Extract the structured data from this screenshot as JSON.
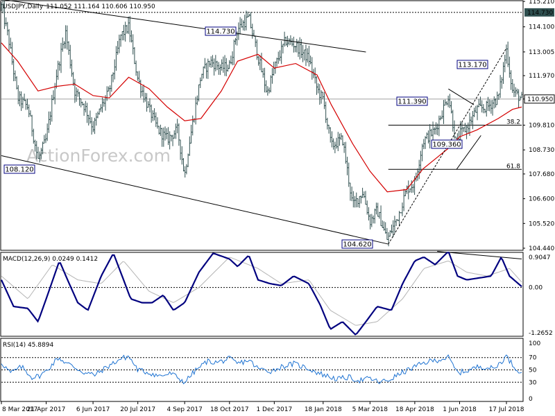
{
  "header": {
    "symbol": "USDJPY,Daily",
    "ohlc": "111.052 111.164 110.606 110.950"
  },
  "watermark": "ActionForex.com",
  "price_panel": {
    "y_ticks": [
      "115.210",
      "114.100",
      "113.005",
      "111.970",
      "110.950",
      "109.810",
      "108.730",
      "107.680",
      "106.600",
      "105.520",
      "104.440"
    ],
    "current_price": "110.950",
    "marked_level": "114.730",
    "annotations": [
      "114.730",
      "113.170",
      "111.390",
      "109.360",
      "108.120",
      "104.620"
    ],
    "fib_levels": [
      "38.2",
      "61.8"
    ]
  },
  "macd_panel": {
    "label": "MACD(12,26,9) 0.0249 0.1412",
    "y_ticks": [
      "0.9047",
      "0.00",
      "-1.2652"
    ]
  },
  "rsi_panel": {
    "label": "RSI(14) 45.8894",
    "y_ticks": [
      "100",
      "70",
      "50",
      "30",
      "0"
    ]
  },
  "x_ticks": [
    "8 Mar 2017",
    "21 Apr 2017",
    "6 Jun 2017",
    "20 Jul 2017",
    "4 Sep 2017",
    "18 Oct 2017",
    "1 Dec 2017",
    "18 Jan 2018",
    "5 Mar 2018",
    "18 Apr 2018",
    "1 Jun 2018",
    "17 Jul 2018"
  ],
  "colors": {
    "price_bars": "#2f4f4f",
    "moving_average": "#d40000",
    "macd_line": "#00007f",
    "macd_signal": "#b4b4b4",
    "rsi_line": "#1e73d2"
  },
  "chart_data": [
    {
      "type": "ohlc",
      "instrument": "USDJPY",
      "timeframe": "Daily",
      "x_range": [
        "2017-03-08",
        "2018-08-01"
      ],
      "ylim": [
        104.44,
        115.21
      ],
      "current": 110.95,
      "last_bar": {
        "open": 111.052,
        "high": 111.164,
        "low": 110.606,
        "close": 110.95
      },
      "close_series": {
        "x": [
          "2017-03-08",
          "2017-03-15",
          "2017-03-24",
          "2017-04-03",
          "2017-04-13",
          "2017-04-21",
          "2017-05-01",
          "2017-05-10",
          "2017-05-19",
          "2017-05-29",
          "2017-06-06",
          "2017-06-14",
          "2017-06-22",
          "2017-07-03",
          "2017-07-11",
          "2017-07-20",
          "2017-07-31",
          "2017-08-09",
          "2017-08-18",
          "2017-08-28",
          "2017-09-04",
          "2017-09-08",
          "2017-09-20",
          "2017-09-29",
          "2017-10-10",
          "2017-10-18",
          "2017-10-26",
          "2017-11-06",
          "2017-11-15",
          "2017-11-24",
          "2017-12-01",
          "2017-12-12",
          "2017-12-22",
          "2018-01-04",
          "2018-01-12",
          "2018-01-18",
          "2018-01-26",
          "2018-02-06",
          "2018-02-16",
          "2018-02-26",
          "2018-03-05",
          "2018-03-12",
          "2018-03-22",
          "2018-04-02",
          "2018-04-10",
          "2018-04-18",
          "2018-04-26",
          "2018-05-08",
          "2018-05-21",
          "2018-05-29",
          "2018-06-01",
          "2018-06-08",
          "2018-06-18",
          "2018-06-28",
          "2018-07-09",
          "2018-07-17",
          "2018-07-23",
          "2018-08-01"
        ],
        "close": [
          115.0,
          113.6,
          111.0,
          110.6,
          108.3,
          109.2,
          112.0,
          113.9,
          111.3,
          110.6,
          109.7,
          110.6,
          111.3,
          113.7,
          114.1,
          111.8,
          110.5,
          109.6,
          109.2,
          109.6,
          107.6,
          108.9,
          112.0,
          112.6,
          112.3,
          112.4,
          114.0,
          114.5,
          112.8,
          111.2,
          112.3,
          113.5,
          113.3,
          112.7,
          111.4,
          110.9,
          108.9,
          109.2,
          106.3,
          106.9,
          105.6,
          106.1,
          104.8,
          105.9,
          107.0,
          107.3,
          109.1,
          109.6,
          111.1,
          108.9,
          109.4,
          109.7,
          110.5,
          110.6,
          111.0,
          113.1,
          111.3,
          110.95
        ]
      },
      "moving_average": {
        "x": [
          "2017-03-08",
          "2017-03-24",
          "2017-04-13",
          "2017-05-01",
          "2017-05-19",
          "2017-06-06",
          "2017-06-22",
          "2017-07-11",
          "2017-07-31",
          "2017-08-18",
          "2017-09-04",
          "2017-09-20",
          "2017-10-10",
          "2017-10-26",
          "2017-11-15",
          "2017-12-01",
          "2017-12-22",
          "2018-01-12",
          "2018-01-26",
          "2018-02-16",
          "2018-03-05",
          "2018-03-22",
          "2018-04-10",
          "2018-04-26",
          "2018-05-21",
          "2018-06-01",
          "2018-06-18",
          "2018-07-09",
          "2018-07-23",
          "2018-08-01"
        ],
        "value": [
          113.4,
          112.6,
          111.3,
          111.5,
          111.6,
          111.1,
          111.0,
          111.9,
          111.4,
          110.6,
          110.0,
          110.1,
          111.3,
          112.6,
          112.9,
          112.3,
          112.5,
          112.0,
          110.7,
          109.0,
          107.8,
          106.9,
          107.0,
          107.9,
          108.8,
          109.3,
          109.6,
          110.1,
          110.5,
          110.6
        ]
      },
      "annotations": [
        {
          "label": "114.730",
          "x": "2017-10-18",
          "y": 114.73
        },
        {
          "label": "113.170",
          "x": "2018-07-17",
          "y": 113.17
        },
        {
          "label": "111.390",
          "x": "2018-05-21",
          "y": 111.39
        },
        {
          "label": "109.360",
          "x": "2018-05-29",
          "y": 109.36
        },
        {
          "label": "108.120",
          "x": "2017-04-13",
          "y": 108.12
        },
        {
          "label": "104.620",
          "x": "2018-03-23",
          "y": 104.62
        }
      ],
      "fib_levels": [
        {
          "label": "38.2",
          "y": 109.81
        },
        {
          "label": "61.8",
          "y": 107.88
        }
      ],
      "horizontal_line": 114.73,
      "trendlines": [
        {
          "style": "solid",
          "from": {
            "x": "2017-03-08",
            "y": 115.3
          },
          "to": {
            "x": "2018-03-01",
            "y": 113.0
          }
        },
        {
          "style": "solid",
          "from": {
            "x": "2017-03-08",
            "y": 108.48
          },
          "to": {
            "x": "2018-03-23",
            "y": 104.62
          }
        },
        {
          "style": "dashed",
          "from": {
            "x": "2018-03-23",
            "y": 104.62
          },
          "to": {
            "x": "2018-07-17",
            "y": 113.17
          }
        },
        {
          "style": "solid",
          "from": {
            "x": "2018-05-21",
            "y": 111.39
          },
          "to": {
            "x": "2018-06-15",
            "y": 110.7
          }
        },
        {
          "style": "solid",
          "from": {
            "x": "2018-05-29",
            "y": 107.88
          },
          "to": {
            "x": "2018-06-22",
            "y": 109.36
          }
        }
      ]
    },
    {
      "type": "line",
      "indicator": "MACD(12,26,9)",
      "ylim": [
        -1.2652,
        0.9047
      ],
      "series": [
        {
          "style": "thick",
          "x": [
            "2017-03-08",
            "2017-03-20",
            "2017-04-03",
            "2017-04-13",
            "2017-04-21",
            "2017-05-04",
            "2017-05-12",
            "2017-05-22",
            "2017-06-01",
            "2017-06-14",
            "2017-06-26",
            "2017-07-06",
            "2017-07-13",
            "2017-07-24",
            "2017-08-03",
            "2017-08-14",
            "2017-08-24",
            "2017-09-04",
            "2017-09-18",
            "2017-10-02",
            "2017-10-18",
            "2017-10-26",
            "2017-11-06",
            "2017-11-15",
            "2017-11-27",
            "2017-12-08",
            "2017-12-20",
            "2018-01-04",
            "2018-01-15",
            "2018-01-25",
            "2018-02-06",
            "2018-02-19",
            "2018-03-01",
            "2018-03-12",
            "2018-03-26",
            "2018-04-06",
            "2018-04-18",
            "2018-04-27",
            "2018-05-08",
            "2018-05-21",
            "2018-05-30",
            "2018-06-08",
            "2018-06-20",
            "2018-07-02",
            "2018-07-12",
            "2018-07-20",
            "2018-08-01"
          ],
          "values": [
            0.2,
            -0.5,
            -0.55,
            -0.9,
            -0.3,
            0.7,
            0.2,
            -0.4,
            -0.6,
            0.3,
            0.9,
            0.2,
            -0.3,
            -0.4,
            -0.4,
            -0.2,
            -0.6,
            -0.4,
            0.4,
            0.9,
            0.75,
            0.55,
            0.85,
            0.2,
            0.1,
            0.05,
            0.3,
            0.1,
            -0.45,
            -1.1,
            -0.9,
            -1.25,
            -0.9,
            -0.5,
            -0.6,
            0.1,
            0.7,
            0.8,
            0.6,
            0.95,
            0.3,
            0.2,
            0.25,
            0.3,
            0.8,
            0.3,
            0.0249
          ]
        },
        {
          "style": "thin",
          "x": [
            "2017-03-08",
            "2017-04-03",
            "2017-04-27",
            "2017-05-22",
            "2017-06-14",
            "2017-07-06",
            "2017-07-31",
            "2017-08-24",
            "2017-09-18",
            "2017-10-18",
            "2017-11-15",
            "2017-12-08",
            "2018-01-04",
            "2018-01-25",
            "2018-02-19",
            "2018-03-12",
            "2018-04-06",
            "2018-04-27",
            "2018-05-21",
            "2018-06-08",
            "2018-06-28",
            "2018-07-20",
            "2018-08-01"
          ],
          "values": [
            0.3,
            -0.3,
            0.6,
            0.2,
            0.1,
            0.7,
            -0.1,
            -0.4,
            0.0,
            0.8,
            0.5,
            0.1,
            0.2,
            -0.6,
            -1.0,
            -0.9,
            -0.3,
            0.5,
            0.7,
            0.4,
            0.3,
            0.5,
            0.1412
          ]
        }
      ],
      "trendline": {
        "from": {
          "x": "2018-05-10",
          "y": 0.95
        },
        "to": {
          "x": "2018-08-01",
          "y": 0.75
        }
      }
    },
    {
      "type": "line",
      "indicator": "RSI(14)",
      "ylim": [
        0,
        100
      ],
      "levels": [
        70,
        50,
        30
      ],
      "series": [
        {
          "name": "RSI(14)",
          "x": [
            "2017-03-08",
            "2017-03-17",
            "2017-03-28",
            "2017-04-07",
            "2017-04-14",
            "2017-04-21",
            "2017-05-03",
            "2017-05-10",
            "2017-05-18",
            "2017-05-29",
            "2017-06-08",
            "2017-06-20",
            "2017-07-03",
            "2017-07-11",
            "2017-07-20",
            "2017-08-01",
            "2017-08-10",
            "2017-08-22",
            "2017-09-04",
            "2017-09-14",
            "2017-09-26",
            "2017-10-06",
            "2017-10-18",
            "2017-10-26",
            "2017-11-06",
            "2017-11-15",
            "2017-11-28",
            "2017-12-08",
            "2017-12-20",
            "2018-01-04",
            "2018-01-12",
            "2018-01-22",
            "2018-02-01",
            "2018-02-12",
            "2018-02-22",
            "2018-03-05",
            "2018-03-14",
            "2018-03-23",
            "2018-04-05",
            "2018-04-18",
            "2018-04-30",
            "2018-05-10",
            "2018-05-21",
            "2018-05-30",
            "2018-06-11",
            "2018-06-21",
            "2018-07-05",
            "2018-07-17",
            "2018-07-25",
            "2018-08-01"
          ],
          "values": [
            62,
            45,
            55,
            38,
            40,
            48,
            70,
            62,
            55,
            45,
            42,
            55,
            68,
            72,
            50,
            45,
            40,
            44,
            30,
            48,
            64,
            62,
            68,
            60,
            66,
            52,
            48,
            55,
            60,
            52,
            46,
            40,
            35,
            38,
            33,
            36,
            30,
            33,
            45,
            55,
            63,
            66,
            70,
            45,
            50,
            56,
            52,
            72,
            54,
            45.8894
          ]
        }
      ]
    }
  ]
}
